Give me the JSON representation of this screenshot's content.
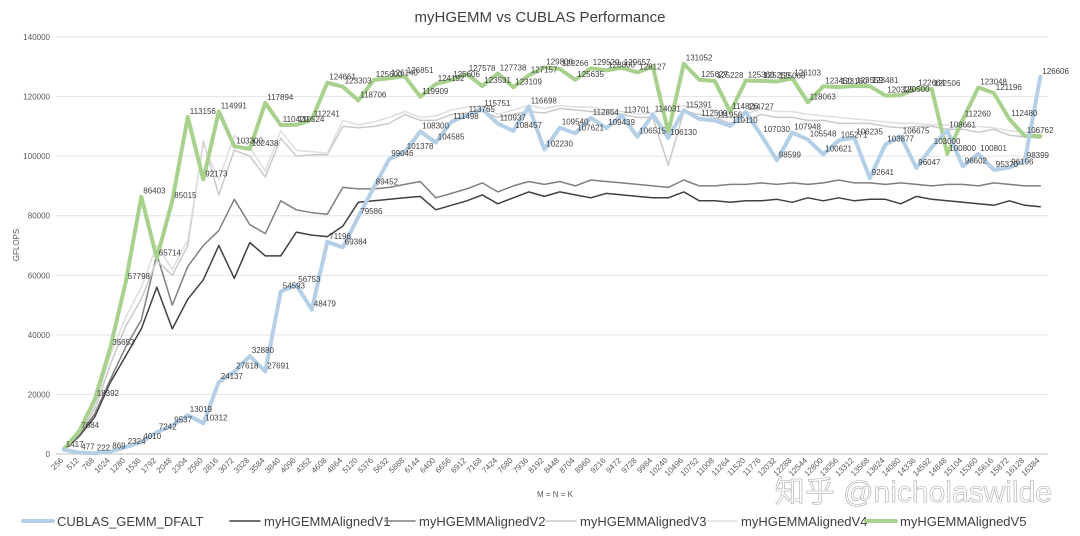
{
  "chart_data": {
    "type": "line",
    "title": "myHGEMM vs CUBLAS Performance",
    "xlabel": "M = N = K",
    "ylabel": "GFLOPS",
    "ylim": [
      0,
      140000
    ],
    "yticks": [
      0,
      20000,
      40000,
      60000,
      80000,
      100000,
      120000,
      140000
    ],
    "grid": true,
    "legend_position": "bottom",
    "x": [
      256,
      512,
      768,
      1024,
      1280,
      1536,
      1792,
      2048,
      2304,
      2560,
      2816,
      3072,
      3328,
      3584,
      3840,
      4096,
      4352,
      4608,
      4864,
      5120,
      5376,
      5632,
      5888,
      6144,
      6400,
      6656,
      6912,
      7168,
      7424,
      7680,
      7936,
      8192,
      8448,
      8704,
      8960,
      9216,
      9472,
      9728,
      9984,
      10240,
      10496,
      10752,
      11008,
      11264,
      11520,
      11776,
      12032,
      12288,
      12544,
      12800,
      13056,
      13312,
      13568,
      13824,
      14080,
      14336,
      14592,
      14848,
      15104,
      15360,
      15616,
      15872,
      16128,
      16384
    ],
    "series": [
      {
        "name": "CUBLAS_GEMM_DFALT",
        "color": "#b4cfe6",
        "width": 4,
        "values": [
          1417,
          477,
          222,
          869,
          2324,
          4010,
          7242,
          9537,
          13019,
          10312,
          24137,
          27618,
          32880,
          27691,
          54593,
          56753,
          48479,
          71196,
          69384,
          79586,
          89452,
          99046,
          101378,
          108300,
          104585,
          111498,
          113765,
          115751,
          110937,
          108457,
          116698,
          102230,
          109540,
          107621,
          112854,
          109439,
          113701,
          106515,
          114031,
          106130,
          115391,
          112509,
          111956,
          110110,
          114727,
          107030,
          98599,
          107948,
          105548,
          100621,
          105271,
          106235,
          92641,
          103877,
          106675,
          96047,
          103000,
          108661,
          96602,
          100801,
          95370,
          96196,
          98399,
          126606
        ],
        "labels": [
          1417,
          477,
          222,
          869,
          2324,
          4010,
          7242,
          9537,
          13019,
          10312,
          24137,
          27618,
          32880,
          27691,
          54593,
          56753,
          48479,
          71196,
          69384,
          79586,
          89452,
          99046,
          101378,
          108300,
          104585,
          111498,
          113765,
          115751,
          110937,
          108457,
          116698,
          102230,
          109540,
          107621,
          112854,
          109439,
          113701,
          106515,
          114031,
          106130,
          115391,
          112509,
          111956,
          110110,
          114727,
          107030,
          98599,
          107948,
          105548,
          100621,
          105271,
          106235,
          92641,
          103877,
          106675,
          96047,
          103000,
          108661,
          96602,
          100801,
          95370,
          96196,
          98399,
          126606
        ]
      },
      {
        "name": "myHGEMMAlignedV1",
        "color": "#404040",
        "width": 1.5,
        "values": [
          1200,
          6000,
          12500,
          24000,
          33000,
          42000,
          56000,
          42000,
          52000,
          58500,
          70000,
          59000,
          71000,
          66500,
          66500,
          74500,
          73500,
          73000,
          76500,
          84500,
          85000,
          85500,
          86000,
          86500,
          82000,
          83500,
          85000,
          87000,
          84000,
          86000,
          88000,
          86500,
          88000,
          87000,
          86000,
          87500,
          87000,
          86500,
          86000,
          86000,
          88000,
          85000,
          85000,
          84500,
          85000,
          85000,
          85500,
          84500,
          86000,
          85000,
          86000,
          85000,
          85500,
          85500,
          84000,
          86500,
          85500,
          85000,
          84500,
          84000,
          83500,
          85000,
          83500,
          83000
        ]
      },
      {
        "name": "myHGEMMAlignedV2",
        "color": "#7f7f7f",
        "width": 1.5,
        "values": [
          1300,
          6500,
          13500,
          25000,
          36000,
          45000,
          67000,
          50000,
          63000,
          70000,
          75000,
          85500,
          77000,
          74000,
          85000,
          82000,
          81000,
          80500,
          89500,
          89000,
          89000,
          89500,
          90500,
          91500,
          86000,
          87500,
          89000,
          91000,
          88000,
          90000,
          91500,
          90500,
          91500,
          90000,
          92000,
          91500,
          91000,
          90500,
          90000,
          89500,
          92000,
          90000,
          90000,
          90500,
          90500,
          91000,
          90500,
          91000,
          90500,
          91000,
          92000,
          91000,
          91000,
          90500,
          91000,
          90500,
          90000,
          90500,
          90500,
          90000,
          91000,
          90500,
          90000,
          90000
        ]
      },
      {
        "name": "myHGEMMAlignedV3",
        "color": "#c9c9c9",
        "width": 1.5,
        "values": [
          1400,
          7000,
          15000,
          30000,
          43000,
          52000,
          65000,
          60000,
          70000,
          105000,
          87000,
          102000,
          100000,
          93000,
          106000,
          100000,
          100500,
          100500,
          110000,
          109500,
          110000,
          111000,
          114000,
          112000,
          112000,
          114000,
          114500,
          115000,
          113000,
          114000,
          115000,
          114500,
          116000,
          115500,
          115000,
          114500,
          114000,
          113000,
          113000,
          97000,
          115000,
          114000,
          113000,
          111000,
          112000,
          114000,
          113000,
          113000,
          112000,
          112000,
          111000,
          111000,
          111000,
          110000,
          109500,
          110000,
          110000,
          109000,
          109000,
          108000,
          109000,
          107000,
          106500,
          106000
        ]
      },
      {
        "name": "myHGEMMAlignedV4",
        "color": "#dedede",
        "width": 1.5,
        "values": [
          1500,
          7500,
          16000,
          33000,
          46000,
          56000,
          70000,
          62000,
          72000,
          104000,
          92000,
          107000,
          103000,
          95000,
          108500,
          102000,
          101500,
          101000,
          112000,
          110500,
          111500,
          113000,
          115000,
          113000,
          113500,
          115500,
          116500,
          117000,
          114000,
          115500,
          117000,
          116000,
          117000,
          116500,
          116500,
          115500,
          115000,
          114000,
          114500,
          116000,
          117000,
          116000,
          115500,
          113000,
          114000,
          116000,
          115000,
          115000,
          114000,
          113500,
          113000,
          112500,
          112000,
          111500,
          111000,
          111000,
          110500,
          110500,
          110000,
          110000,
          109500,
          108500,
          108000,
          108000
        ]
      },
      {
        "name": "myHGEMMAlignedV5",
        "color": "#a9d18e",
        "width": 4,
        "values": [
          1600,
          7684,
          18392,
          35653,
          57798,
          86403,
          65714,
          85015,
          113156,
          92173,
          114991,
          103300,
          102438,
          117894,
          110420,
          110524,
          112241,
          124661,
          123303,
          118706,
          125600,
          126140,
          126851,
          119909,
          124192,
          125606,
          127578,
          123531,
          127738,
          123109,
          127157,
          129800,
          129266,
          125635,
          129520,
          128800,
          129657,
          128127,
          130100,
          108000,
          131052,
          125627,
          125228,
          114826,
          125360,
          125250,
          125068,
          126103,
          118063,
          123450,
          123180,
          123559,
          123481,
          120325,
          120500,
          122664,
          122506,
          100800,
          112260,
          123048,
          121196,
          112480,
          106762,
          106762
        ],
        "labels": [
          null,
          7684,
          18392,
          35653,
          57798,
          86403,
          65714,
          85015,
          113156,
          92173,
          114991,
          103300,
          102438,
          117894,
          110420,
          110524,
          112241,
          124661,
          123303,
          118706,
          125600,
          126140,
          126851,
          119909,
          124192,
          125606,
          127578,
          123531,
          127738,
          123109,
          127157,
          129800,
          129266,
          125635,
          129520,
          128800,
          129657,
          128127,
          null,
          null,
          131052,
          125627,
          125228,
          114826,
          125360,
          125250,
          125068,
          126103,
          118063,
          123450,
          123180,
          123559,
          123481,
          120325,
          120500,
          122664,
          122506,
          100800,
          112260,
          123048,
          121196,
          112480,
          106762,
          null
        ]
      }
    ]
  },
  "watermark": "知乎 @nicholaswilde"
}
